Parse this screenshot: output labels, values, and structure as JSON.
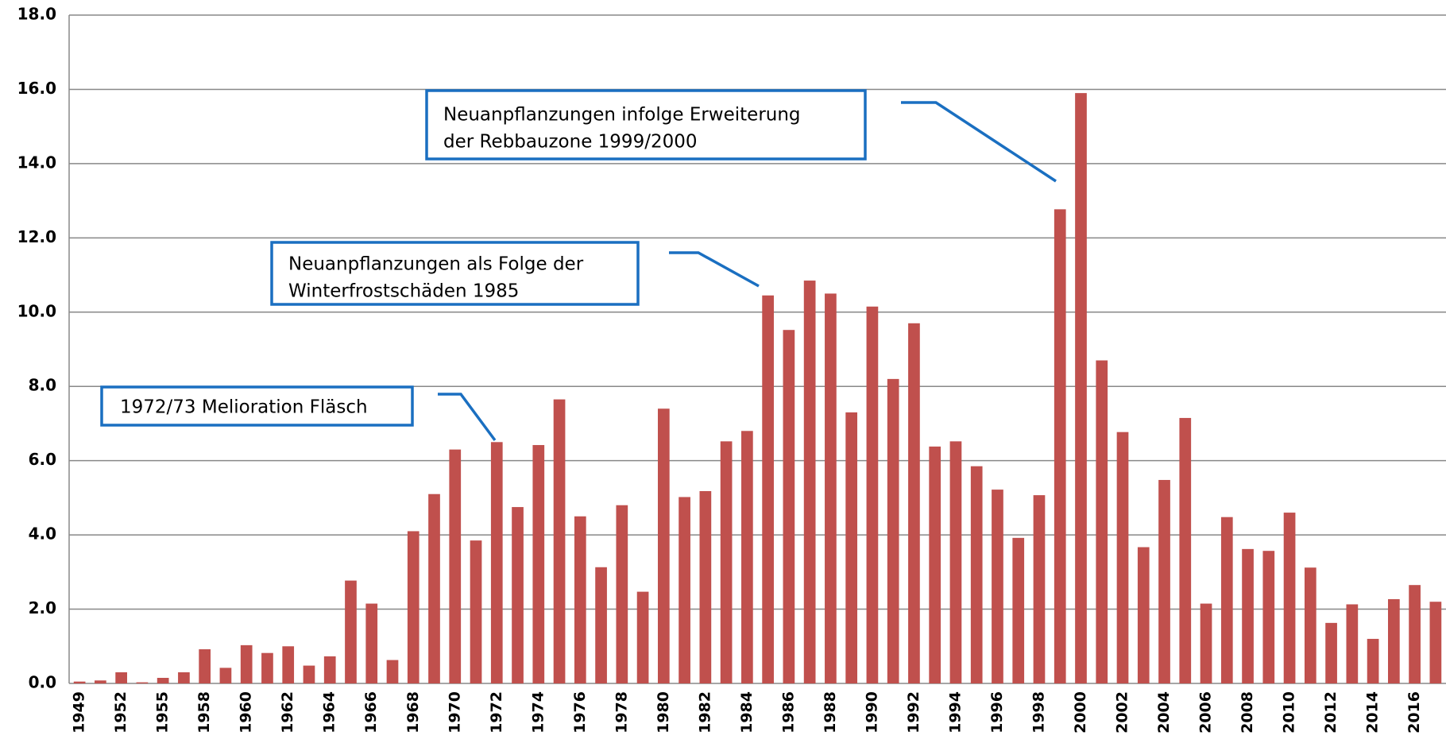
{
  "chart_data": {
    "type": "bar",
    "categories": [
      "1949",
      null,
      "1952",
      null,
      "1955",
      null,
      "1958",
      null,
      "1960",
      null,
      "1962",
      null,
      "1964",
      null,
      "1966",
      null,
      "1968",
      null,
      "1970",
      null,
      "1972",
      null,
      "1974",
      null,
      "1976",
      null,
      "1978",
      null,
      "1980",
      null,
      "1982",
      null,
      "1984",
      null,
      "1986",
      null,
      "1988",
      null,
      "1990",
      null,
      "1992",
      null,
      "1994",
      null,
      "1996",
      null,
      "1998",
      null,
      "2000",
      null,
      "2002",
      null,
      "2004",
      null,
      "2006",
      null,
      "2008",
      null,
      "2010",
      null,
      "2012",
      null,
      "2014",
      null,
      "2016",
      null
    ],
    "values": [
      0.05,
      0.08,
      0.3,
      0.03,
      0.15,
      0.3,
      0.92,
      0.42,
      1.03,
      0.82,
      1.0,
      0.48,
      0.73,
      2.77,
      2.15,
      0.63,
      4.1,
      5.1,
      6.3,
      3.85,
      6.5,
      4.75,
      6.42,
      7.65,
      4.5,
      3.13,
      4.8,
      2.47,
      7.4,
      5.02,
      5.18,
      6.52,
      6.8,
      10.45,
      9.52,
      10.85,
      10.5,
      7.3,
      10.15,
      8.2,
      9.7,
      6.38,
      6.52,
      5.85,
      5.22,
      3.92,
      5.07,
      12.77,
      15.9,
      8.7,
      6.77,
      3.67,
      5.48,
      7.15,
      2.15,
      4.48,
      3.62,
      3.57,
      4.6,
      3.12,
      1.63,
      2.13,
      1.2,
      2.27,
      2.65,
      2.2
    ],
    "color": "#c0504d",
    "ylim": [
      0,
      18
    ],
    "yticks": [
      {
        "value": 0,
        "label": "0.0"
      },
      {
        "value": 2,
        "label": "2.0"
      },
      {
        "value": 4,
        "label": "4.0"
      },
      {
        "value": 6,
        "label": "6.0"
      },
      {
        "value": 8,
        "label": "8.0"
      },
      {
        "value": 10,
        "label": "10.0"
      },
      {
        "value": 12,
        "label": "12.0"
      },
      {
        "value": 14,
        "label": "14.0"
      },
      {
        "value": 16,
        "label": "16.0"
      },
      {
        "value": 18,
        "label": "18.0"
      }
    ],
    "grid": true,
    "annotations": [
      {
        "lines": [
          "1972/73 Melioration Fläsch"
        ]
      },
      {
        "lines": [
          "Neuanpflanzungen als Folge der",
          "Winterfrostschäden 1985"
        ]
      },
      {
        "lines": [
          "Neuanpflanzungen infolge Erweiterung",
          "der Rebbauzone 1999/2000"
        ]
      }
    ]
  }
}
